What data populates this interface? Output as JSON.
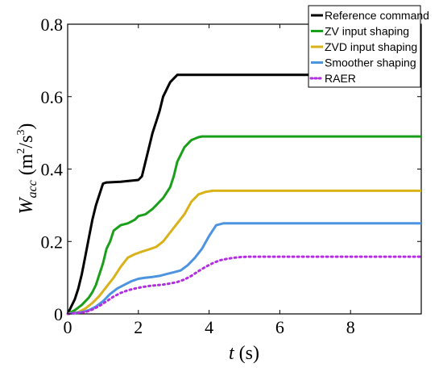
{
  "chart_data": {
    "type": "line",
    "xlabel": {
      "var": "t",
      "unit": "(s)"
    },
    "ylabel": {
      "var": "W",
      "sub": "acc",
      "unit_open": "(m",
      "sup1": "2",
      "unit_mid": "/s",
      "sup2": "3",
      "unit_close": ")"
    },
    "xlim": [
      0,
      10
    ],
    "ylim": [
      0,
      0.8
    ],
    "xticks": [
      0,
      2,
      4,
      6,
      8
    ],
    "xtick_labels": [
      "0",
      "2",
      "4",
      "6",
      "8"
    ],
    "yticks": [
      0,
      0.2,
      0.4,
      0.6,
      0.8
    ],
    "ytick_labels": [
      "0",
      "0.2",
      "0.4",
      "0.6",
      "0.8"
    ],
    "grid": false,
    "legend_position": "top-right",
    "series": [
      {
        "name": "Reference command",
        "color": "#000000",
        "dash": "solid",
        "x": [
          0,
          0.1,
          0.2,
          0.3,
          0.4,
          0.5,
          0.6,
          0.7,
          0.8,
          0.9,
          1.0,
          1.1,
          1.5,
          2.0,
          2.1,
          2.2,
          2.3,
          2.4,
          2.5,
          2.6,
          2.7,
          2.8,
          2.9,
          3.0,
          3.1,
          10
        ],
        "y": [
          0,
          0.02,
          0.04,
          0.07,
          0.11,
          0.16,
          0.21,
          0.26,
          0.3,
          0.33,
          0.36,
          0.363,
          0.365,
          0.37,
          0.38,
          0.42,
          0.46,
          0.5,
          0.53,
          0.56,
          0.6,
          0.62,
          0.64,
          0.65,
          0.66,
          0.66
        ]
      },
      {
        "name": "ZV input shaping",
        "color": "#1a9f1a",
        "dash": "solid",
        "x": [
          0,
          0.2,
          0.4,
          0.6,
          0.7,
          0.8,
          0.9,
          1.0,
          1.1,
          1.2,
          1.3,
          1.5,
          1.7,
          1.9,
          2.0,
          2.2,
          2.4,
          2.5,
          2.7,
          2.9,
          3.0,
          3.1,
          3.2,
          3.3,
          3.5,
          3.7,
          3.8,
          10
        ],
        "y": [
          0,
          0.01,
          0.025,
          0.045,
          0.06,
          0.08,
          0.11,
          0.14,
          0.18,
          0.2,
          0.23,
          0.245,
          0.25,
          0.26,
          0.27,
          0.275,
          0.29,
          0.3,
          0.32,
          0.35,
          0.38,
          0.42,
          0.44,
          0.46,
          0.48,
          0.488,
          0.49,
          0.49
        ]
      },
      {
        "name": "ZVD input shaping",
        "color": "#d9b21a",
        "dash": "solid",
        "x": [
          0,
          0.3,
          0.5,
          0.7,
          0.9,
          1.1,
          1.3,
          1.5,
          1.7,
          1.9,
          2.1,
          2.3,
          2.5,
          2.7,
          2.9,
          3.1,
          3.3,
          3.5,
          3.7,
          3.9,
          4.1,
          10
        ],
        "y": [
          0,
          0.005,
          0.015,
          0.03,
          0.05,
          0.075,
          0.1,
          0.13,
          0.155,
          0.165,
          0.172,
          0.178,
          0.185,
          0.2,
          0.225,
          0.25,
          0.275,
          0.31,
          0.33,
          0.337,
          0.34,
          0.34
        ]
      },
      {
        "name": "Smoother shaping",
        "color": "#4d94e0",
        "dash": "solid",
        "x": [
          0,
          0.4,
          0.6,
          0.8,
          1.0,
          1.2,
          1.4,
          1.6,
          1.8,
          2.0,
          2.2,
          2.4,
          2.6,
          2.8,
          3.0,
          3.2,
          3.4,
          3.6,
          3.8,
          4.0,
          4.2,
          4.4,
          10
        ],
        "y": [
          0,
          0.005,
          0.01,
          0.02,
          0.035,
          0.055,
          0.07,
          0.08,
          0.09,
          0.097,
          0.1,
          0.102,
          0.105,
          0.11,
          0.115,
          0.12,
          0.135,
          0.155,
          0.18,
          0.215,
          0.245,
          0.25,
          0.25
        ]
      },
      {
        "name": "RAER",
        "color": "#b32ee0",
        "dash": "dotted",
        "x": [
          0,
          0.5,
          0.7,
          0.9,
          1.1,
          1.3,
          1.5,
          1.7,
          1.9,
          2.1,
          2.3,
          2.5,
          2.7,
          2.9,
          3.1,
          3.3,
          3.5,
          3.7,
          3.9,
          4.1,
          4.3,
          4.5,
          4.7,
          4.9,
          5.1,
          10
        ],
        "y": [
          0,
          0.005,
          0.012,
          0.022,
          0.035,
          0.048,
          0.058,
          0.065,
          0.07,
          0.074,
          0.077,
          0.079,
          0.081,
          0.084,
          0.088,
          0.095,
          0.105,
          0.118,
          0.13,
          0.14,
          0.148,
          0.152,
          0.155,
          0.157,
          0.158,
          0.158
        ]
      }
    ]
  }
}
